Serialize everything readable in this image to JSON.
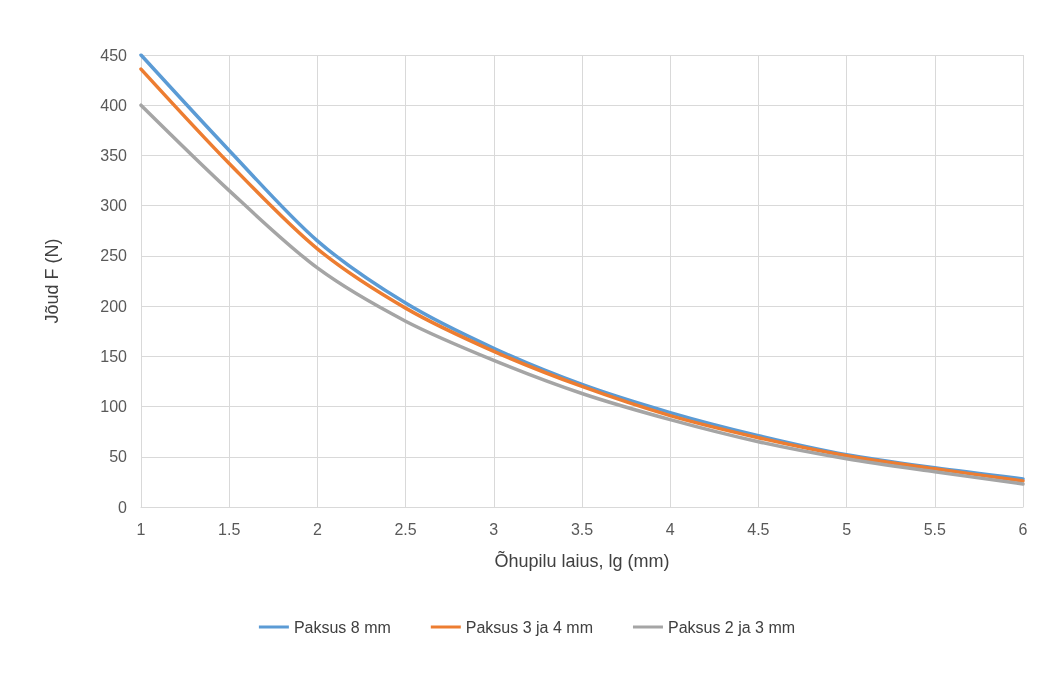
{
  "chart_data": {
    "type": "line",
    "xlabel": "Õhupilu laius, lg (mm)",
    "ylabel": "Jõud F (N)",
    "x": [
      1,
      1.5,
      2,
      2.5,
      3,
      3.5,
      4,
      4.5,
      5,
      5.5,
      6
    ],
    "series": [
      {
        "name": "Paksus 8 mm",
        "color": "#5b9bd5",
        "values": [
          450,
          355,
          265,
          203,
          158,
          122,
          94,
          71,
          52,
          39,
          28
        ]
      },
      {
        "name": "Paksus 3 ja 4 mm",
        "color": "#ed7d31",
        "values": [
          436,
          342,
          257,
          198,
          155,
          120,
          91,
          69,
          51,
          38,
          26
        ]
      },
      {
        "name": "Paksus 2 ja 3 mm",
        "color": "#a5a5a5",
        "values": [
          400,
          315,
          238,
          185,
          146,
          113,
          87,
          65,
          48,
          35,
          23
        ]
      }
    ],
    "xlim": [
      1,
      6
    ],
    "xticks": [
      1,
      1.5,
      2,
      2.5,
      3,
      3.5,
      4,
      4.5,
      5,
      5.5,
      6
    ],
    "ylim": [
      0,
      450
    ],
    "yticks": [
      0,
      50,
      100,
      150,
      200,
      250,
      300,
      350,
      400,
      450
    ],
    "grid": true,
    "legend": "bottom",
    "marker": "none",
    "line_style": "solid"
  }
}
